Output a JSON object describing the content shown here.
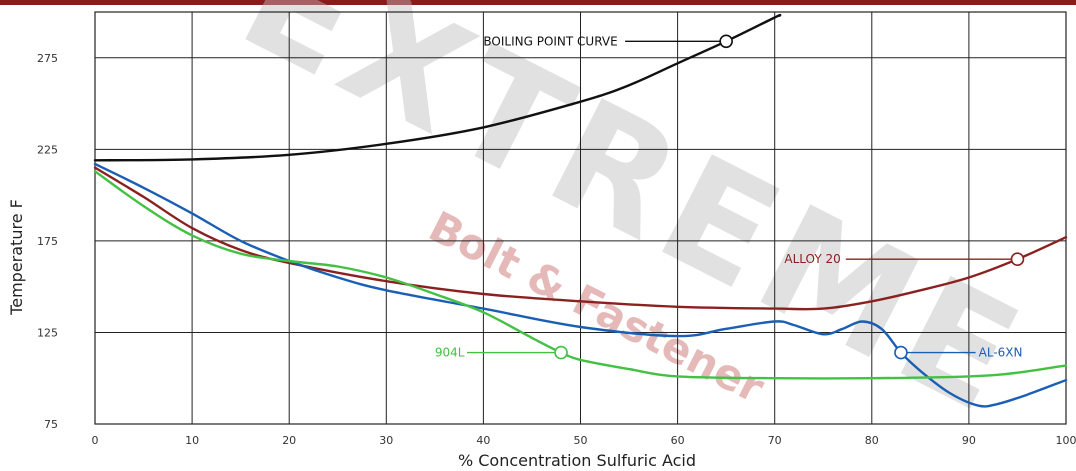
{
  "watermark": {
    "word": "EXTREME",
    "tagline": "Bolt & Fastener"
  },
  "chart_data": {
    "type": "line",
    "xlabel": "% Concentration Sulfuric Acid",
    "ylabel": "Temperature F",
    "xlim": [
      0,
      100
    ],
    "ylim": [
      75,
      300
    ],
    "x_ticks": [
      "0",
      "10",
      "20",
      "30",
      "40",
      "50",
      "60",
      "70",
      "80",
      "90",
      "100"
    ],
    "y_ticks": [
      "75",
      "125",
      "175",
      "225",
      "275"
    ],
    "grid": true,
    "colors": {
      "header_bar": "#8b1a1a",
      "grid": "#222222"
    },
    "series": [
      {
        "name": "BOILING POINT CURVE",
        "color": "#111111",
        "points": [
          [
            0,
            219
          ],
          [
            10,
            219.5
          ],
          [
            20,
            222
          ],
          [
            30,
            228
          ],
          [
            40,
            237
          ],
          [
            50,
            251
          ],
          [
            55,
            260
          ],
          [
            60,
            272
          ],
          [
            65,
            284
          ],
          [
            70,
            297
          ],
          [
            70.5,
            298
          ]
        ]
      },
      {
        "name": "ALLOY 20",
        "color": "#8b2020",
        "points": [
          [
            0,
            215
          ],
          [
            5,
            199
          ],
          [
            10,
            182
          ],
          [
            15,
            170
          ],
          [
            20,
            163
          ],
          [
            30,
            153
          ],
          [
            40,
            146
          ],
          [
            50,
            142
          ],
          [
            60,
            139
          ],
          [
            70,
            138
          ],
          [
            75,
            138
          ],
          [
            80,
            142
          ],
          [
            85,
            148
          ],
          [
            90,
            155
          ],
          [
            95,
            165
          ],
          [
            100,
            177
          ]
        ]
      },
      {
        "name": "AL-6XN",
        "color": "#1a5fb4",
        "points": [
          [
            0,
            217
          ],
          [
            5,
            204
          ],
          [
            10,
            190
          ],
          [
            15,
            175
          ],
          [
            20,
            164
          ],
          [
            25,
            155
          ],
          [
            30,
            148
          ],
          [
            40,
            138
          ],
          [
            50,
            128
          ],
          [
            60,
            123
          ],
          [
            65,
            127
          ],
          [
            70,
            131
          ],
          [
            72,
            129
          ],
          [
            75,
            124
          ],
          [
            77,
            127
          ],
          [
            79,
            131
          ],
          [
            81,
            127
          ],
          [
            83,
            114
          ],
          [
            85,
            104
          ],
          [
            88,
            92
          ],
          [
            91,
            85
          ],
          [
            93,
            86
          ],
          [
            96,
            91
          ],
          [
            100,
            99
          ]
        ]
      },
      {
        "name": "904L",
        "color": "#44c044",
        "points": [
          [
            0,
            213
          ],
          [
            5,
            194
          ],
          [
            10,
            178
          ],
          [
            15,
            168
          ],
          [
            20,
            164
          ],
          [
            25,
            161
          ],
          [
            30,
            155
          ],
          [
            35,
            146
          ],
          [
            40,
            136
          ],
          [
            45,
            122
          ],
          [
            48,
            114
          ],
          [
            50,
            110
          ],
          [
            55,
            105
          ],
          [
            60,
            101
          ],
          [
            70,
            100
          ],
          [
            80,
            100
          ],
          [
            90,
            101
          ],
          [
            95,
            103
          ],
          [
            100,
            107
          ]
        ]
      }
    ],
    "annotations": [
      {
        "text": "BOILING POINT CURVE",
        "series": "BOILING POINT CURVE",
        "marker": [
          65,
          284
        ],
        "side": "left",
        "label_x": 40
      },
      {
        "text": "ALLOY 20",
        "series": "ALLOY 20",
        "marker": [
          95,
          165
        ],
        "side": "left",
        "label_x": 71
      },
      {
        "text": "AL-6XN",
        "series": "AL-6XN",
        "marker": [
          83,
          114
        ],
        "side": "right",
        "label_x": 91
      },
      {
        "text": "904L",
        "series": "904L",
        "marker": [
          48,
          114
        ],
        "side": "left",
        "label_x": 35
      }
    ]
  }
}
